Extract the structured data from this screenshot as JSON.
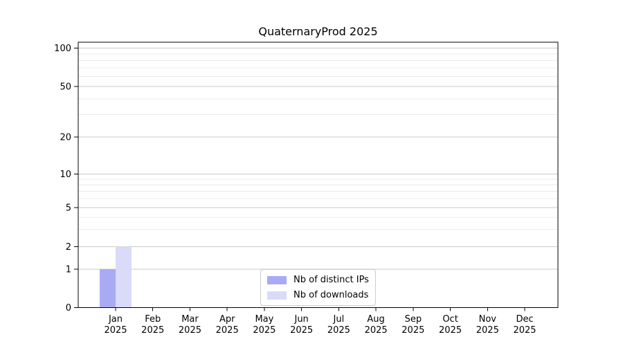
{
  "title": "QuaternaryProd 2025",
  "chart_data": {
    "type": "bar",
    "title": "QuaternaryProd 2025",
    "xlabel": "",
    "ylabel": "",
    "x": [
      "Jan 2025",
      "Feb 2025",
      "Mar 2025",
      "Apr 2025",
      "May 2025",
      "Jun 2025",
      "Jul 2025",
      "Aug 2025",
      "Sep 2025",
      "Oct 2025",
      "Nov 2025",
      "Dec 2025"
    ],
    "series": [
      {
        "name": "Nb of distinct IPs",
        "color": "#a8abf4",
        "values": [
          1,
          0,
          0,
          0,
          0,
          0,
          0,
          0,
          0,
          0,
          0,
          0
        ]
      },
      {
        "name": "Nb of downloads",
        "color": "#d9dbf9",
        "values": [
          2,
          0,
          0,
          0,
          0,
          0,
          0,
          0,
          0,
          0,
          0,
          0
        ]
      }
    ],
    "y_axis": {
      "scale": "log-like with 0 baseline",
      "major_ticks": [
        0,
        1,
        2,
        5,
        10,
        20,
        50,
        100
      ],
      "minor_gridlines": [
        3,
        4,
        6,
        7,
        8,
        9,
        30,
        40,
        60,
        70,
        80,
        90
      ],
      "range": [
        0,
        100
      ]
    },
    "grid": true,
    "legend": {
      "position": "bottom-center",
      "entries": [
        "Nb of distinct IPs",
        "Nb of downloads"
      ]
    },
    "colors": {
      "major_grid": "#c9c9c9",
      "minor_grid": "#ebebeb",
      "spine": "#000000",
      "text": "#000000"
    }
  }
}
